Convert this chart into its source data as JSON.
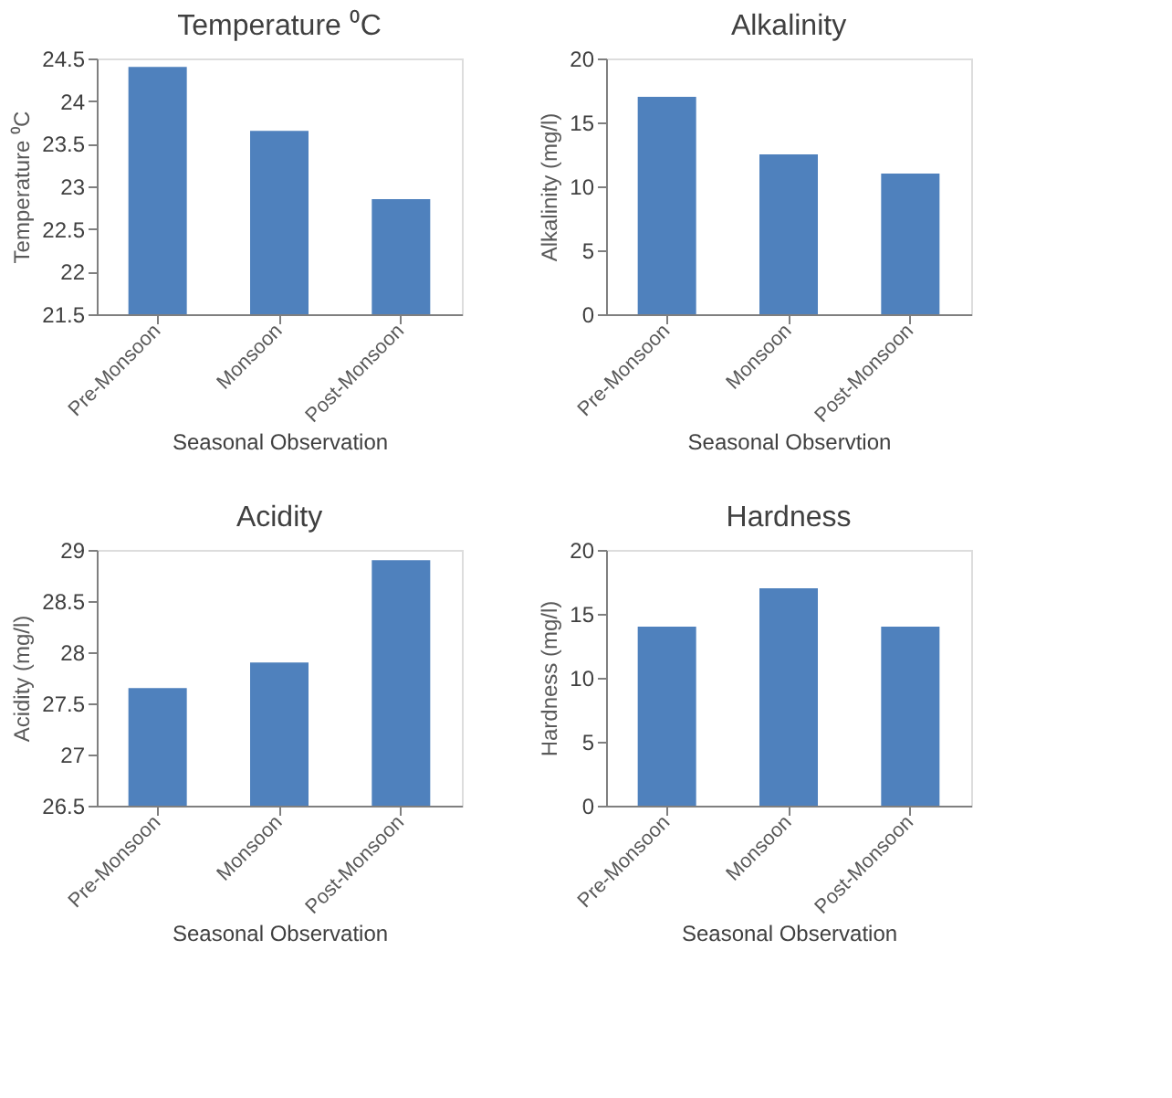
{
  "chart_data": [
    {
      "type": "bar",
      "title": "Temperature ⁰C",
      "ylabel": "Temperature ⁰C",
      "xlabel": "Seasonal Observation",
      "categories": [
        "Pre-Monsoon",
        "Monsoon",
        "Post-Monsoon"
      ],
      "values": [
        24.4,
        23.65,
        22.85
      ],
      "color": "#4f81bd",
      "ylim": [
        21.5,
        24.5
      ],
      "yticks": [
        21.5,
        22,
        22.5,
        23,
        23.5,
        24,
        24.5
      ],
      "grid": false
    },
    {
      "type": "bar",
      "title": "Alkalinity",
      "ylabel": "Alkalinity (mg/l)",
      "xlabel": "Seasonal Observtion",
      "categories": [
        "Pre-Monsoon",
        "Monsoon",
        "Post-Monsoon"
      ],
      "values": [
        17,
        12.5,
        11
      ],
      "color": "#4f81bd",
      "ylim": [
        0,
        20
      ],
      "yticks": [
        0,
        5,
        10,
        15,
        20
      ],
      "grid": false
    },
    {
      "type": "bar",
      "title": "Acidity",
      "ylabel": "Acidity (mg/l)",
      "xlabel": "Seasonal Observation",
      "categories": [
        "Pre-Monsoon",
        "Monsoon",
        "Post-Monsoon"
      ],
      "values": [
        27.65,
        27.9,
        28.9
      ],
      "color": "#4f81bd",
      "ylim": [
        26.5,
        29
      ],
      "yticks": [
        26.5,
        27,
        27.5,
        28,
        28.5,
        29
      ],
      "grid": false
    },
    {
      "type": "bar",
      "title": "Hardness",
      "ylabel": "Hardness (mg/l)",
      "xlabel": "Seasonal Observation",
      "categories": [
        "Pre-Monsoon",
        "Monsoon",
        "Post-Monsoon"
      ],
      "values": [
        14,
        17,
        14
      ],
      "color": "#4f81bd",
      "ylim": [
        0,
        20
      ],
      "yticks": [
        0,
        5,
        10,
        15,
        20
      ],
      "grid": false
    }
  ]
}
